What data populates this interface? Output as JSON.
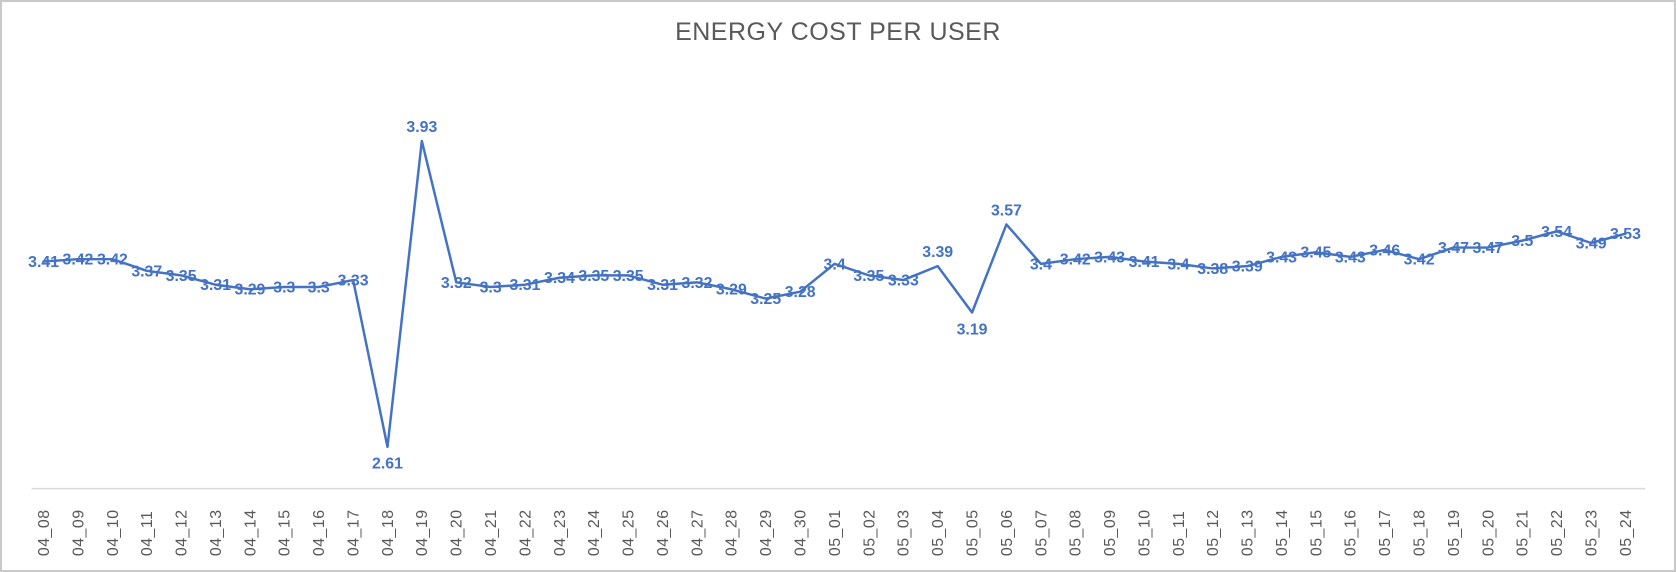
{
  "chart_data": {
    "type": "line",
    "title": "ENERGY COST PER USER",
    "categories": [
      "04_08",
      "04_09",
      "04_10",
      "04_11",
      "04_12",
      "04_13",
      "04_14",
      "04_15",
      "04_16",
      "04_17",
      "04_18",
      "04_19",
      "04_20",
      "04_21",
      "04_22",
      "04_23",
      "04_24",
      "04_25",
      "04_26",
      "04_27",
      "04_28",
      "04_29",
      "04_30",
      "05_01",
      "05_02",
      "05_03",
      "05_04",
      "05_05",
      "05_06",
      "05_07",
      "05_08",
      "05_09",
      "05_10",
      "05_11",
      "05_12",
      "05_13",
      "05_14",
      "05_15",
      "05_16",
      "05_17",
      "05_18",
      "05_19",
      "05_20",
      "05_21",
      "05_22",
      "05_23",
      "05_24"
    ],
    "values": [
      3.41,
      3.42,
      3.42,
      3.37,
      3.35,
      3.31,
      3.29,
      3.3,
      3.3,
      3.33,
      2.61,
      3.93,
      3.32,
      3.3,
      3.31,
      3.34,
      3.35,
      3.35,
      3.31,
      3.32,
      3.29,
      3.25,
      3.28,
      3.4,
      3.35,
      3.33,
      3.39,
      3.19,
      3.57,
      3.4,
      3.42,
      3.43,
      3.41,
      3.4,
      3.38,
      3.39,
      3.43,
      3.45,
      3.43,
      3.46,
      3.42,
      3.47,
      3.47,
      3.5,
      3.54,
      3.49,
      3.53
    ],
    "xlabel": "",
    "ylabel": "",
    "ylim": [
      2.43,
      4.23
    ],
    "x_tick_rotation_degrees": 90,
    "data_labels_shown": true,
    "y_axis_shown": false,
    "grid": "off",
    "legend": "none",
    "colors": {
      "series_line": "#4472C4",
      "data_label": "#4472C4",
      "title": "#595959",
      "tick_label": "#595959",
      "axis_line": "#D9D9D9"
    }
  }
}
